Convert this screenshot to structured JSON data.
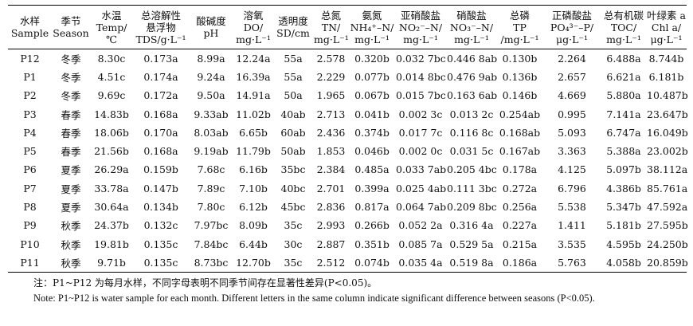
{
  "table": {
    "headers": [
      {
        "l1": "水样",
        "l2": "Sample",
        "l3": ""
      },
      {
        "l1": "季节",
        "l2": "Season",
        "l3": ""
      },
      {
        "l1": "水温",
        "l2": "Temp/",
        "l3": "℃"
      },
      {
        "l1": "总溶解性",
        "l2": "悬浮物",
        "l3": "TDS/g·L⁻¹"
      },
      {
        "l1": "酸碱度",
        "l2": "pH",
        "l3": ""
      },
      {
        "l1": "溶氧",
        "l2": "DO/",
        "l3": "mg·L⁻¹"
      },
      {
        "l1": "透明度",
        "l2": "SD/cm",
        "l3": ""
      },
      {
        "l1": "总氮",
        "l2": "TN/",
        "l3": "mg·L⁻¹"
      },
      {
        "l1": "氨氮",
        "l2": "NH₄⁺–N/",
        "l3": "mg·L⁻¹"
      },
      {
        "l1": "亚硝酸盐",
        "l2": "NO₂⁻–N/",
        "l3": "mg·L⁻¹"
      },
      {
        "l1": "硝酸盐",
        "l2": "NO₃⁻–N/",
        "l3": "mg·L⁻¹"
      },
      {
        "l1": "总磷",
        "l2": "TP",
        "l3": "/mg·L⁻¹"
      },
      {
        "l1": "正磷酸盐",
        "l2": "PO₄³⁻–P/",
        "l3": "μg·L⁻¹"
      },
      {
        "l1": "总有机碳",
        "l2": "TOC/",
        "l3": "mg·L⁻¹"
      },
      {
        "l1": "叶绿素 a",
        "l2": "Chl a/",
        "l3": "μg·L⁻¹"
      }
    ],
    "rows": [
      [
        "P12",
        "冬季",
        "8.30c",
        "0.173a",
        "8.99a",
        "12.24a",
        "55a",
        "2.578",
        "0.320b",
        "0.032 7bc",
        "0.446 8ab",
        "0.130b",
        "2.264",
        "6.488a",
        "8.744b"
      ],
      [
        "P1",
        "冬季",
        "4.51c",
        "0.174a",
        "9.24a",
        "16.39a",
        "55a",
        "2.229",
        "0.077b",
        "0.014 8bc",
        "0.476 9ab",
        "0.136b",
        "2.657",
        "6.621a",
        "6.181b"
      ],
      [
        "P2",
        "冬季",
        "9.69c",
        "0.172a",
        "9.50a",
        "14.91a",
        "50a",
        "1.965",
        "0.067b",
        "0.015 7bc",
        "0.163 6ab",
        "0.146b",
        "4.669",
        "5.880a",
        "10.487b"
      ],
      [
        "P3",
        "春季",
        "14.83b",
        "0.168a",
        "9.33ab",
        "11.02b",
        "40ab",
        "2.713",
        "0.041b",
        "0.002 3c",
        "0.013 2c",
        "0.254ab",
        "0.995",
        "7.141a",
        "23.647b"
      ],
      [
        "P4",
        "春季",
        "18.06b",
        "0.170a",
        "8.03ab",
        "6.65b",
        "60ab",
        "2.436",
        "0.374b",
        "0.017 7c",
        "0.116 8c",
        "0.168ab",
        "5.093",
        "6.747a",
        "16.049b"
      ],
      [
        "P5",
        "春季",
        "21.56b",
        "0.168a",
        "9.19ab",
        "11.79b",
        "50ab",
        "1.853",
        "0.046b",
        "0.002 0c",
        "0.031 5c",
        "0.167ab",
        "3.363",
        "5.388a",
        "23.002b"
      ],
      [
        "P6",
        "夏季",
        "26.29a",
        "0.159b",
        "7.68c",
        "6.16b",
        "35bc",
        "2.384",
        "0.485a",
        "0.033 7ab",
        "0.205 4bc",
        "0.178a",
        "4.125",
        "5.097b",
        "38.112a"
      ],
      [
        "P7",
        "夏季",
        "33.78a",
        "0.147b",
        "7.89c",
        "7.10b",
        "40bc",
        "2.701",
        "0.399a",
        "0.025 4ab",
        "0.111 3bc",
        "0.272a",
        "6.796",
        "4.386b",
        "85.761a"
      ],
      [
        "P8",
        "夏季",
        "30.64a",
        "0.134b",
        "7.80c",
        "6.12b",
        "45bc",
        "2.836",
        "0.817a",
        "0.064 7ab",
        "0.209 8bc",
        "0.256a",
        "5.538",
        "5.347b",
        "47.592a"
      ],
      [
        "P9",
        "秋季",
        "24.37b",
        "0.132c",
        "7.97bc",
        "8.09b",
        "35c",
        "2.993",
        "0.266b",
        "0.052 2a",
        "0.316 4a",
        "0.227a",
        "1.411",
        "5.181b",
        "27.595b"
      ],
      [
        "P10",
        "秋季",
        "19.81b",
        "0.135c",
        "7.84bc",
        "6.44b",
        "30c",
        "2.887",
        "0.351b",
        "0.085 7a",
        "0.529 5a",
        "0.215a",
        "3.535",
        "4.595b",
        "24.250b"
      ],
      [
        "P11",
        "秋季",
        "9.71b",
        "0.135c",
        "8.73bc",
        "12.70b",
        "35c",
        "2.512",
        "0.074b",
        "0.035 4a",
        "0.519 8a",
        "0.186a",
        "5.763",
        "4.058b",
        "20.859b"
      ]
    ]
  },
  "notes": {
    "zh": "注：P1~P12 为每月水样，不同字母表明不同季节间存在显著性差异(P<0.05)。",
    "en": "Note: P1~P12 is water sample for each month. Different letters in the same column indicate significant difference between seasons (P<0.05)."
  }
}
